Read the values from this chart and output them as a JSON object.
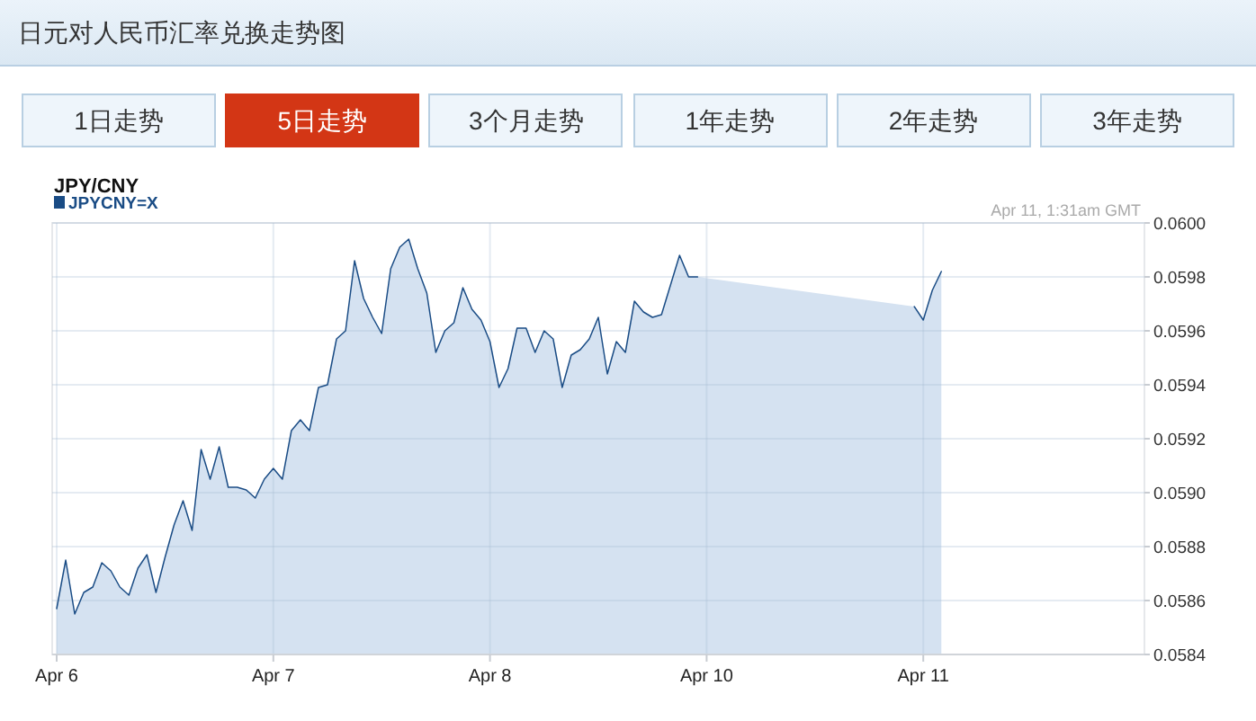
{
  "chart_data": [
    {
      "type": "other",
      "title": "日元对人民币汇率兑换走势图",
      "categories": [
        "1日走势",
        "5日走势",
        "3个月走势",
        "1年走势",
        "2年走势",
        "3年走势"
      ],
      "colors": [
        "#eef5fb",
        "#d33615",
        "#eef5fb",
        "#eef5fb",
        "#eef5fb",
        "#eef5fb"
      ]
    },
    {
      "type": "area",
      "title": "JPY/CNY",
      "annotations": [
        "Apr 11, 1:31am GMT"
      ],
      "grid": true,
      "legend": "top left",
      "categories": [
        "Apr 6",
        null,
        null,
        null,
        null,
        null,
        null,
        null,
        null,
        null,
        null,
        null,
        null,
        null,
        null,
        null,
        null,
        null,
        null,
        null,
        null,
        null,
        null,
        null,
        "Apr 7",
        null,
        null,
        null,
        null,
        null,
        null,
        null,
        null,
        null,
        null,
        null,
        null,
        null,
        null,
        null,
        null,
        null,
        null,
        null,
        null,
        null,
        null,
        null,
        "Apr 8",
        null,
        null,
        null,
        null,
        null,
        null,
        null,
        null,
        null,
        null,
        null,
        null,
        null,
        null,
        null,
        null,
        null,
        null,
        null,
        null,
        null,
        null,
        null,
        "Apr 10",
        null,
        null,
        null,
        null,
        null,
        null,
        null,
        null,
        null,
        null,
        null,
        null,
        null,
        null,
        null,
        null,
        null,
        null,
        null,
        null,
        null,
        null,
        null,
        "Apr 11",
        null,
        null,
        null,
        null,
        null,
        null,
        null,
        null,
        null,
        null,
        null,
        null,
        null,
        null,
        null,
        null,
        null,
        null,
        null,
        null,
        null,
        null,
        null,
        null
      ],
      "ylim": [
        0.0584,
        0.06
      ],
      "yticks": [
        0.0584,
        0.0586,
        0.0588,
        {
          "value": 0.059,
          "label": "0.0590"
        },
        0.0592,
        0.0594,
        0.0596,
        0.0598,
        {
          "value": 0.06,
          "label": "0.0600"
        }
      ],
      "series": [
        {
          "name": "JPYCNY=X",
          "color": "#1a4c85",
          "values": [
            0.05857,
            0.05875,
            0.05855,
            0.05863,
            0.05865,
            0.05874,
            0.05871,
            0.05865,
            0.05862,
            0.05872,
            0.05877,
            0.05863,
            0.05876,
            0.05888,
            0.05897,
            0.05886,
            0.05916,
            0.05905,
            0.05917,
            0.05902,
            0.05902,
            0.05901,
            0.05898,
            0.05905,
            0.05909,
            0.05905,
            0.05923,
            0.05927,
            0.05923,
            0.05939,
            0.0594,
            0.05957,
            0.0596,
            0.05986,
            0.05972,
            0.05965,
            0.05959,
            0.05983,
            0.05991,
            0.05994,
            0.05983,
            0.05974,
            0.05952,
            0.0596,
            0.05963,
            0.05976,
            0.05968,
            0.05964,
            0.05956,
            0.05939,
            0.05946,
            0.05961,
            0.05961,
            0.05952,
            0.0596,
            0.05957,
            0.05939,
            0.05951,
            0.05953,
            0.05957,
            0.05965,
            0.05944,
            0.05956,
            0.05952,
            0.05971,
            0.05967,
            0.05965,
            0.05966,
            0.05977,
            0.05988,
            0.0598,
            0.0598,
            null,
            null,
            null,
            null,
            null,
            null,
            null,
            null,
            null,
            null,
            null,
            null,
            null,
            null,
            null,
            null,
            null,
            null,
            null,
            null,
            null,
            null,
            null,
            0.05969,
            0.05964,
            0.05975,
            0.05982,
            null,
            null,
            null,
            null,
            null,
            null,
            null,
            null,
            null,
            null,
            null,
            null,
            null,
            null,
            null,
            null,
            null,
            null,
            null,
            null,
            null,
            null
          ]
        }
      ]
    }
  ]
}
